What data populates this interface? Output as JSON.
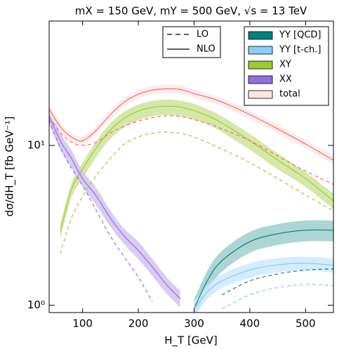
{
  "chart_data": {
    "type": "line",
    "title": "mX = 150 GeV, mY = 500 GeV, √s = 13 TeV",
    "x_label": "H_T [GeV]",
    "y_label": "dσ/dH_T [fb GeV⁻¹]",
    "log_y": true,
    "xlim": [
      40,
      550
    ],
    "ylim": [
      0.9,
      60
    ],
    "xticks": [
      100,
      200,
      300,
      400,
      500
    ],
    "yticks": [
      {
        "value": 1,
        "label": "10⁰"
      },
      {
        "value": 10,
        "label": "10¹"
      }
    ],
    "line_styles": [
      {
        "name": "LO",
        "dash": true
      },
      {
        "name": "NLO",
        "dash": false
      }
    ],
    "x": [
      40,
      60,
      80,
      100,
      125,
      150,
      175,
      200,
      225,
      250,
      275,
      300,
      325,
      350,
      400,
      450,
      500,
      550
    ],
    "processes": [
      {
        "name": "YY [QCD]",
        "color": "#0f7f7a",
        "band_color": "#9ccfcc",
        "legend_color": "#008080",
        "nlo": [
          null,
          null,
          null,
          null,
          null,
          null,
          null,
          null,
          null,
          null,
          null,
          0.95,
          1.45,
          1.9,
          2.5,
          2.8,
          2.95,
          2.95
        ],
        "band_low": [
          null,
          null,
          null,
          null,
          null,
          null,
          null,
          null,
          null,
          null,
          null,
          0.81,
          1.23,
          1.62,
          2.13,
          2.38,
          2.51,
          2.51
        ],
        "band_high": [
          null,
          null,
          null,
          null,
          null,
          null,
          null,
          null,
          null,
          null,
          null,
          1.09,
          1.67,
          2.19,
          2.88,
          3.22,
          3.39,
          3.39
        ],
        "lo": [
          null,
          null,
          null,
          null,
          null,
          null,
          null,
          null,
          null,
          null,
          null,
          null,
          null,
          1.16,
          1.42,
          1.57,
          1.66,
          1.69
        ]
      },
      {
        "name": "YY [t-ch.]",
        "color": "#88ccee",
        "band_color": "#cde9fb",
        "legend_color": "#87cefa",
        "nlo": [
          null,
          null,
          null,
          null,
          null,
          null,
          null,
          null,
          null,
          null,
          null,
          0.95,
          1.22,
          1.42,
          1.66,
          1.79,
          1.83,
          1.78
        ],
        "band_low": [
          null,
          null,
          null,
          null,
          null,
          null,
          null,
          null,
          null,
          null,
          null,
          0.86,
          1.1,
          1.28,
          1.49,
          1.61,
          1.65,
          1.6
        ],
        "band_high": [
          null,
          null,
          null,
          null,
          null,
          null,
          null,
          null,
          null,
          null,
          null,
          1.05,
          1.34,
          1.56,
          1.83,
          1.97,
          2.01,
          1.96
        ],
        "lo": [
          null,
          null,
          null,
          null,
          null,
          null,
          null,
          null,
          null,
          null,
          null,
          null,
          null,
          0.95,
          1.16,
          1.29,
          1.35,
          1.33
        ]
      },
      {
        "name": "XY",
        "color": "#9acd32",
        "band_color": "#cfe49a",
        "legend_color": "#9acd32",
        "nlo": [
          null,
          2.9,
          5.3,
          7.1,
          9.7,
          12.5,
          14.8,
          16.4,
          17.3,
          17.6,
          17.4,
          16.5,
          15.3,
          13.8,
          10.7,
          8.1,
          6.2,
          4.5
        ],
        "band_low": [
          null,
          2.6,
          4.7,
          6.2,
          8.5,
          11.0,
          13.0,
          14.4,
          15.2,
          15.5,
          15.3,
          14.5,
          13.5,
          12.1,
          9.4,
          7.1,
          5.5,
          4.0
        ],
        "band_high": [
          null,
          3.2,
          5.8,
          7.8,
          10.7,
          13.8,
          16.3,
          18.0,
          19.0,
          19.4,
          19.1,
          18.2,
          16.8,
          15.2,
          11.8,
          8.9,
          6.8,
          5.0
        ],
        "lo": [
          null,
          2.1,
          3.5,
          4.8,
          6.5,
          8.3,
          10.2,
          11.3,
          11.9,
          12.1,
          11.9,
          11.3,
          10.4,
          9.5,
          7.8,
          6.2,
          4.9,
          3.9
        ]
      },
      {
        "name": "XX",
        "color": "#9370db",
        "band_color": "#d2c2ef",
        "legend_color": "#9370db",
        "nlo": [
          15.3,
          10.7,
          8.3,
          6.2,
          4.8,
          3.5,
          2.7,
          2.2,
          1.74,
          1.35,
          1.1,
          null,
          null,
          null,
          null,
          null,
          null,
          null
        ],
        "band_low": [
          13.5,
          9.4,
          7.3,
          5.5,
          4.2,
          3.1,
          2.4,
          1.94,
          1.53,
          1.19,
          0.97,
          null,
          null,
          null,
          null,
          null,
          null,
          null
        ],
        "band_high": [
          17.1,
          12.0,
          9.3,
          6.9,
          5.4,
          3.9,
          3.0,
          2.5,
          1.95,
          1.51,
          1.23,
          null,
          null,
          null,
          null,
          null,
          null,
          null
        ],
        "lo": [
          14.5,
          9.7,
          7.2,
          5.6,
          3.9,
          2.7,
          2.0,
          1.5,
          1.05,
          null,
          null,
          null,
          null,
          null,
          null,
          null,
          null,
          null
        ]
      },
      {
        "name": "total",
        "color": "#ff6666",
        "band_color": "#ffe9e6",
        "legend_color": "#ffe4e1",
        "nlo": [
          16.9,
          13.1,
          11.3,
          10.7,
          12.5,
          15.6,
          18.7,
          20.9,
          22.2,
          22.6,
          22.4,
          21.1,
          20.0,
          18.7,
          15.6,
          12.7,
          10.2,
          8.1
        ],
        "band_low": [
          15.9,
          12.3,
          10.6,
          10.1,
          11.8,
          14.7,
          17.6,
          19.6,
          20.9,
          21.2,
          21.1,
          19.8,
          18.8,
          17.6,
          14.7,
          11.9,
          9.6,
          7.6
        ],
        "band_high": [
          17.9,
          13.9,
          12.0,
          11.3,
          13.3,
          16.5,
          19.8,
          22.2,
          23.5,
          24.0,
          23.7,
          22.4,
          21.2,
          19.8,
          16.5,
          13.5,
          10.8,
          8.6
        ],
        "lo": [
          15,
          12,
          10.5,
          10,
          10.5,
          12,
          13.2,
          14.2,
          14.9,
          15.3,
          15.2,
          14.5,
          13.7,
          12.7,
          10.7,
          8.6,
          6.9,
          5.7
        ]
      }
    ]
  }
}
